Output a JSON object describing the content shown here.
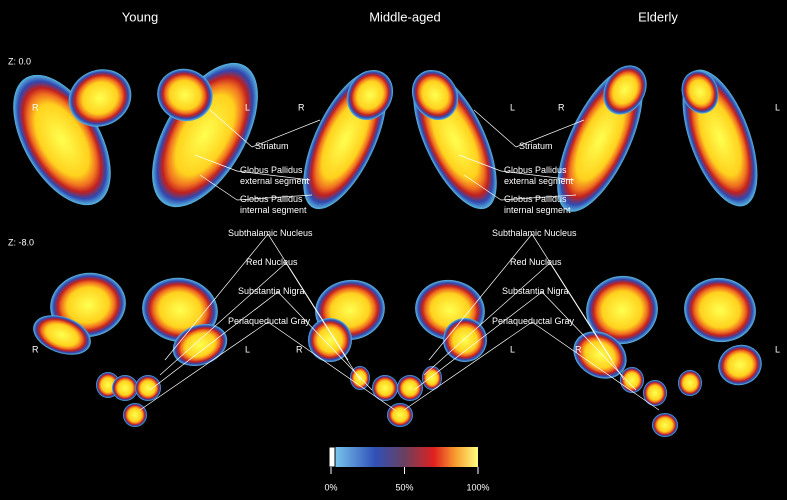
{
  "columns": [
    "Young",
    "Middle-aged",
    "Elderly"
  ],
  "slices": [
    "Z: 0.0",
    "Z: -8.0"
  ],
  "sides": [
    "R",
    "L"
  ],
  "labels": {
    "top": [
      [
        "Striatum"
      ],
      [
        "Globus Pallidus",
        "external segment"
      ],
      [
        "Globus Pallidus",
        "internal segment"
      ]
    ],
    "bottom": [
      [
        "Subthalamic Nucleus"
      ],
      [
        "Red Nucleus"
      ],
      [
        "Substantia Nigra"
      ],
      [
        "Periaqueductal Gray"
      ]
    ]
  },
  "colorbar": {
    "ticks": [
      {
        "value": 0,
        "label": "0%"
      },
      {
        "value": 50,
        "label": "50%"
      },
      {
        "value": 100,
        "label": "100%"
      }
    ]
  }
}
